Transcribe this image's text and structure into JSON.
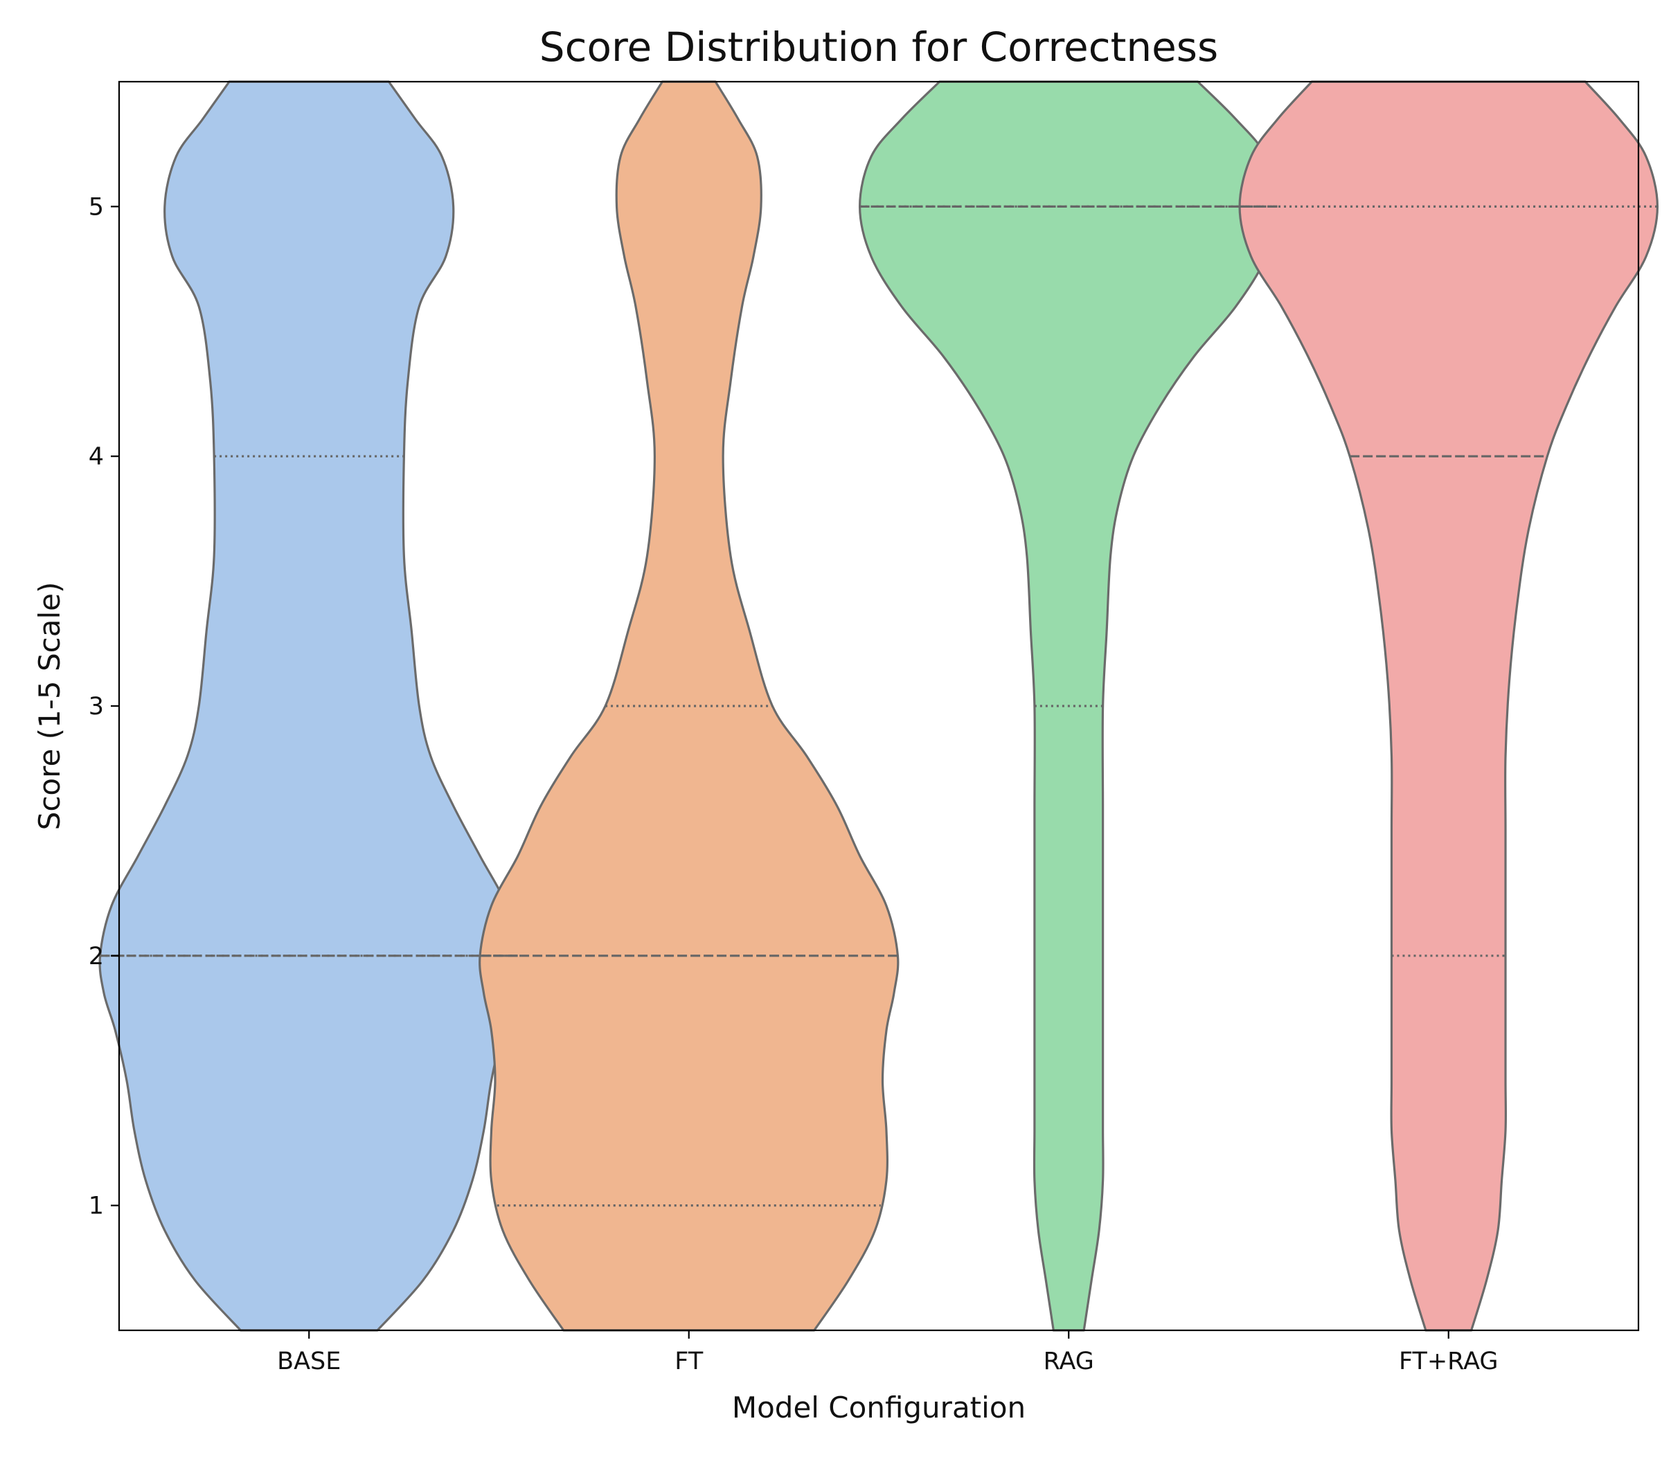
{
  "chart_data": {
    "type": "violin",
    "title": "Score Distribution for Correctness",
    "xlabel": "Model Configuration",
    "ylabel": "Score (1-5 Scale)",
    "ylim": [
      0.5,
      5.5
    ],
    "yticks": [
      1,
      2,
      3,
      4,
      5
    ],
    "grid": false,
    "legend": "none",
    "categories": [
      "BASE",
      "FT",
      "RAG",
      "FT+RAG"
    ],
    "series": [
      {
        "category": "BASE",
        "color": "#aac8eb",
        "quartiles": {
          "q1": 2,
          "median": 2,
          "q3": 4
        },
        "density": [
          [
            0.5,
            0.18
          ],
          [
            0.7,
            0.3
          ],
          [
            0.9,
            0.38
          ],
          [
            1.1,
            0.43
          ],
          [
            1.3,
            0.46
          ],
          [
            1.5,
            0.48
          ],
          [
            1.7,
            0.51
          ],
          [
            1.85,
            0.54
          ],
          [
            2.0,
            0.55
          ],
          [
            2.2,
            0.52
          ],
          [
            2.4,
            0.45
          ],
          [
            2.6,
            0.38
          ],
          [
            2.8,
            0.32
          ],
          [
            3.0,
            0.29
          ],
          [
            3.3,
            0.27
          ],
          [
            3.6,
            0.25
          ],
          [
            4.0,
            0.25
          ],
          [
            4.3,
            0.26
          ],
          [
            4.6,
            0.29
          ],
          [
            4.8,
            0.36
          ],
          [
            5.0,
            0.38
          ],
          [
            5.2,
            0.35
          ],
          [
            5.35,
            0.28
          ],
          [
            5.5,
            0.21
          ]
        ]
      },
      {
        "category": "FT",
        "color": "#f0b690",
        "quartiles": {
          "q1": 1,
          "median": 2,
          "q3": 3
        },
        "density": [
          [
            0.5,
            0.33
          ],
          [
            0.7,
            0.42
          ],
          [
            0.9,
            0.49
          ],
          [
            1.1,
            0.52
          ],
          [
            1.3,
            0.52
          ],
          [
            1.5,
            0.51
          ],
          [
            1.7,
            0.52
          ],
          [
            1.85,
            0.54
          ],
          [
            2.0,
            0.55
          ],
          [
            2.2,
            0.52
          ],
          [
            2.4,
            0.45
          ],
          [
            2.6,
            0.39
          ],
          [
            2.8,
            0.31
          ],
          [
            3.0,
            0.22
          ],
          [
            3.3,
            0.16
          ],
          [
            3.6,
            0.11
          ],
          [
            4.0,
            0.09
          ],
          [
            4.3,
            0.11
          ],
          [
            4.6,
            0.14
          ],
          [
            4.8,
            0.17
          ],
          [
            5.0,
            0.19
          ],
          [
            5.2,
            0.18
          ],
          [
            5.35,
            0.13
          ],
          [
            5.5,
            0.07
          ]
        ]
      },
      {
        "category": "RAG",
        "color": "#98dbab",
        "quartiles": {
          "q1": 3,
          "median": 5,
          "q3": 5
        },
        "density": [
          [
            0.5,
            0.04
          ],
          [
            0.7,
            0.06
          ],
          [
            0.9,
            0.08
          ],
          [
            1.1,
            0.09
          ],
          [
            1.3,
            0.09
          ],
          [
            1.5,
            0.09
          ],
          [
            1.7,
            0.09
          ],
          [
            2.0,
            0.09
          ],
          [
            2.3,
            0.09
          ],
          [
            2.6,
            0.09
          ],
          [
            3.0,
            0.09
          ],
          [
            3.3,
            0.1
          ],
          [
            3.6,
            0.11
          ],
          [
            3.8,
            0.13
          ],
          [
            4.0,
            0.17
          ],
          [
            4.2,
            0.24
          ],
          [
            4.4,
            0.33
          ],
          [
            4.6,
            0.44
          ],
          [
            4.8,
            0.52
          ],
          [
            5.0,
            0.55
          ],
          [
            5.2,
            0.52
          ],
          [
            5.35,
            0.44
          ],
          [
            5.5,
            0.34
          ]
        ]
      },
      {
        "category": "FT+RAG",
        "color": "#f2aaa9",
        "quartiles": {
          "q1": 2,
          "median": 4,
          "q3": 5
        },
        "density": [
          [
            0.5,
            0.06
          ],
          [
            0.7,
            0.1
          ],
          [
            0.9,
            0.13
          ],
          [
            1.1,
            0.14
          ],
          [
            1.3,
            0.15
          ],
          [
            1.5,
            0.15
          ],
          [
            1.8,
            0.15
          ],
          [
            2.1,
            0.15
          ],
          [
            2.5,
            0.15
          ],
          [
            2.8,
            0.15
          ],
          [
            3.1,
            0.16
          ],
          [
            3.4,
            0.18
          ],
          [
            3.7,
            0.21
          ],
          [
            4.0,
            0.26
          ],
          [
            4.2,
            0.31
          ],
          [
            4.4,
            0.37
          ],
          [
            4.6,
            0.44
          ],
          [
            4.8,
            0.52
          ],
          [
            5.0,
            0.55
          ],
          [
            5.2,
            0.52
          ],
          [
            5.35,
            0.45
          ],
          [
            5.5,
            0.36
          ]
        ]
      }
    ]
  }
}
